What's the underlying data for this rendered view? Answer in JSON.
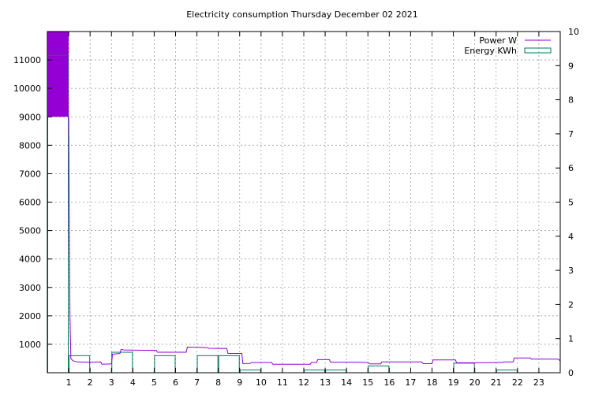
{
  "chart_data": {
    "type": "line",
    "title": "Electricity consumption Thursday December 02 2021",
    "xlabel": "",
    "ylabel": "",
    "y2label": "",
    "xlim": [
      0,
      24
    ],
    "ylim": [
      0,
      12000
    ],
    "y2lim": [
      0,
      10
    ],
    "x_ticks": [
      1,
      2,
      3,
      4,
      5,
      6,
      7,
      8,
      9,
      10,
      11,
      12,
      13,
      14,
      15,
      16,
      17,
      18,
      19,
      20,
      21,
      22,
      23
    ],
    "y_ticks": [
      1000,
      2000,
      3000,
      4000,
      5000,
      6000,
      7000,
      8000,
      9000,
      10000,
      11000
    ],
    "y2_ticks": [
      0,
      1,
      2,
      3,
      4,
      5,
      6,
      7,
      8,
      9,
      10
    ],
    "grid": true,
    "legend": "top-right",
    "series": [
      {
        "name": "Power W",
        "axis": "y",
        "color": "#9400d3",
        "fill_region": {
          "x": [
            0,
            1.0
          ],
          "y": [
            9000,
            12000
          ]
        },
        "points": [
          [
            0,
            12000
          ],
          [
            0.95,
            12000
          ],
          [
            0.98,
            9000
          ],
          [
            1.0,
            9000
          ],
          [
            1.03,
            5000
          ],
          [
            1.06,
            2000
          ],
          [
            1.1,
            500
          ],
          [
            1.2,
            420
          ],
          [
            1.4,
            380
          ],
          [
            2.0,
            370
          ],
          [
            2.5,
            380
          ],
          [
            2.55,
            300
          ],
          [
            3.0,
            310
          ],
          [
            3.05,
            650
          ],
          [
            3.4,
            680
          ],
          [
            3.45,
            820
          ],
          [
            3.6,
            800
          ],
          [
            4.5,
            790
          ],
          [
            5.1,
            790
          ],
          [
            5.15,
            720
          ],
          [
            6.5,
            720
          ],
          [
            6.55,
            900
          ],
          [
            7.2,
            890
          ],
          [
            7.5,
            880
          ],
          [
            7.55,
            860
          ],
          [
            8.4,
            850
          ],
          [
            8.45,
            680
          ],
          [
            9.1,
            680
          ],
          [
            9.15,
            320
          ],
          [
            9.5,
            330
          ],
          [
            9.55,
            360
          ],
          [
            10.5,
            360
          ],
          [
            10.55,
            300
          ],
          [
            11.5,
            300
          ],
          [
            12.3,
            300
          ],
          [
            12.35,
            360
          ],
          [
            12.6,
            360
          ],
          [
            12.65,
            460
          ],
          [
            13.2,
            460
          ],
          [
            13.25,
            370
          ],
          [
            14.5,
            370
          ],
          [
            15.0,
            360
          ],
          [
            15.1,
            310
          ],
          [
            15.6,
            310
          ],
          [
            15.65,
            380
          ],
          [
            17.5,
            380
          ],
          [
            17.6,
            320
          ],
          [
            18.0,
            320
          ],
          [
            18.05,
            450
          ],
          [
            19.1,
            450
          ],
          [
            19.15,
            350
          ],
          [
            20.0,
            350
          ],
          [
            21.3,
            360
          ],
          [
            21.35,
            380
          ],
          [
            21.8,
            380
          ],
          [
            21.85,
            520
          ],
          [
            22.6,
            520
          ],
          [
            22.65,
            480
          ],
          [
            23.9,
            480
          ],
          [
            24.0,
            420
          ]
        ]
      },
      {
        "name": "Energy KWh",
        "axis": "y2",
        "color": "#007a5e",
        "style": "step",
        "bars": [
          [
            0,
            9.3
          ],
          [
            1,
            0.5
          ],
          [
            3,
            0.6
          ],
          [
            5,
            0.5
          ],
          [
            7,
            0.5
          ],
          [
            8,
            0.5
          ],
          [
            9,
            0.08
          ],
          [
            12,
            0.08
          ],
          [
            13,
            0.08
          ],
          [
            15,
            0.2
          ],
          [
            19,
            0.28
          ],
          [
            21,
            0.08
          ]
        ]
      }
    ]
  }
}
